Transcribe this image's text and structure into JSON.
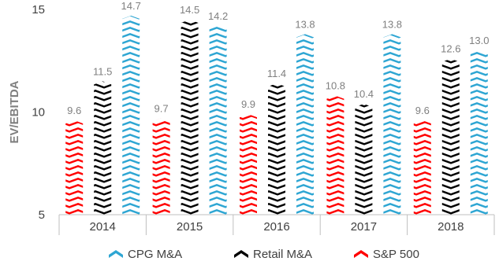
{
  "chart_data": {
    "type": "bar",
    "title": "",
    "xlabel": "",
    "ylabel": "EV/EBITDA",
    "ylim": [
      5,
      15
    ],
    "yticks": [
      "5",
      "10",
      "15"
    ],
    "grid": false,
    "legend_position": "bottom",
    "categories": [
      "2014",
      "2015",
      "2016",
      "2017",
      "2018"
    ],
    "series": [
      {
        "name": "S&P 500",
        "color": "#ff0000",
        "values": [
          9.6,
          9.7,
          9.9,
          10.8,
          9.6
        ],
        "labels": [
          "9.6",
          "9.7",
          "9.9",
          "10.8",
          "9.6"
        ]
      },
      {
        "name": "Retail M&A",
        "color": "#000000",
        "values": [
          11.5,
          14.5,
          11.4,
          10.4,
          12.6
        ],
        "labels": [
          "11.5",
          "14.5",
          "11.4",
          "10.4",
          "12.6"
        ]
      },
      {
        "name": "CPG M&A",
        "color": "#2ea6d3",
        "values": [
          14.7,
          14.2,
          13.8,
          13.8,
          13.0
        ],
        "labels": [
          "14.7",
          "14.2",
          "13.8",
          "13.8",
          "13.0"
        ]
      }
    ],
    "legend_order": [
      2,
      1,
      0
    ],
    "pattern": "chevron"
  }
}
